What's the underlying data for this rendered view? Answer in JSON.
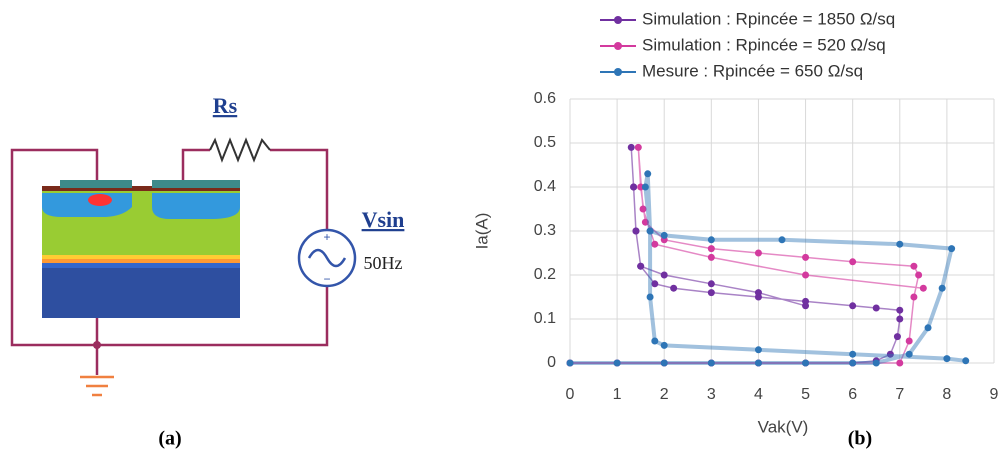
{
  "diagram": {
    "labels": {
      "resistor": "Rs",
      "source": "Vsin",
      "frequency": "50Hz",
      "caption": "(a)"
    }
  },
  "chart_data": {
    "type": "scatter",
    "caption": "(b)",
    "x_label": "Vak(V)",
    "y_label": "Ia(A)",
    "xlim": [
      0,
      9
    ],
    "ylim": [
      0,
      0.6
    ],
    "xticks": [
      0,
      1,
      2,
      3,
      4,
      5,
      6,
      7,
      8,
      9
    ],
    "yticks": [
      0,
      0.1,
      0.2,
      0.3,
      0.4,
      0.5,
      0.6
    ],
    "grid": true,
    "legend": "top",
    "series": [
      {
        "name": "Simulation : Rpincée = 1850 Ω/sq",
        "color": "#7030a0",
        "x": [
          0,
          1,
          2,
          3,
          4,
          5,
          6,
          6.5,
          6.8,
          6.95,
          7.0,
          7.0,
          6.5,
          6,
          5,
          4,
          3,
          2.2,
          1.8,
          1.5,
          1.4,
          1.35,
          1.3,
          1.35,
          1.4,
          1.5,
          2,
          3,
          4,
          5
        ],
        "values": [
          0,
          0,
          0,
          0,
          0,
          0,
          0,
          0.005,
          0.02,
          0.06,
          0.1,
          0.12,
          0.125,
          0.13,
          0.14,
          0.15,
          0.16,
          0.17,
          0.18,
          0.22,
          0.3,
          0.4,
          0.49,
          0.4,
          0.3,
          0.22,
          0.2,
          0.18,
          0.16,
          0.13
        ]
      },
      {
        "name": "Simulation : Rpincée = 520 Ω/sq",
        "color": "#d33a9e",
        "x": [
          0,
          1,
          2,
          3,
          4,
          5,
          6,
          7,
          7.2,
          7.3,
          7.4,
          7.3,
          6,
          5,
          4,
          3,
          2,
          1.6,
          1.5,
          1.45,
          1.55,
          1.8,
          3,
          5,
          7.5
        ],
        "values": [
          0,
          0,
          0,
          0,
          0,
          0,
          0,
          0,
          0.05,
          0.15,
          0.2,
          0.22,
          0.23,
          0.24,
          0.25,
          0.26,
          0.28,
          0.32,
          0.4,
          0.49,
          0.35,
          0.27,
          0.24,
          0.2,
          0.17
        ]
      },
      {
        "name": "Mesure : Rpincée = 650 Ω/sq",
        "color": "#2e75b6",
        "x": [
          0,
          1,
          2,
          3,
          4,
          5,
          6,
          6.5,
          7.2,
          7.6,
          7.9,
          8.1,
          7,
          4.5,
          3,
          2,
          1.7,
          1.6,
          1.65,
          1.7,
          1.7,
          1.8,
          2,
          4,
          6,
          8,
          8.4
        ],
        "values": [
          0,
          0,
          0,
          0,
          0,
          0,
          0,
          0,
          0.02,
          0.08,
          0.17,
          0.26,
          0.27,
          0.28,
          0.28,
          0.29,
          0.3,
          0.4,
          0.43,
          0.3,
          0.15,
          0.05,
          0.04,
          0.03,
          0.02,
          0.01,
          0.005
        ]
      }
    ]
  }
}
